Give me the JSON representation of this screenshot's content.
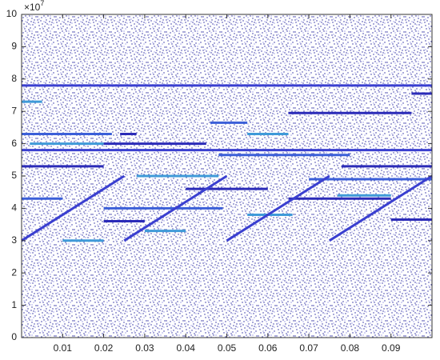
{
  "chart_data": {
    "type": "segments",
    "xlim": [
      0,
      0.1
    ],
    "xticks": [
      0.01,
      0.02,
      0.03,
      0.04,
      0.05,
      0.06,
      0.07,
      0.08,
      0.09
    ],
    "ylim": [
      0,
      100000000
    ],
    "yticks": [
      {
        "value": 0,
        "label": "0"
      },
      {
        "value": 10000000,
        "label": "1"
      },
      {
        "value": 20000000,
        "label": "2"
      },
      {
        "value": 30000000,
        "label": "3"
      },
      {
        "value": 40000000,
        "label": "4"
      },
      {
        "value": 50000000,
        "label": "5"
      },
      {
        "value": 60000000,
        "label": "6"
      },
      {
        "value": 70000000,
        "label": "7"
      },
      {
        "value": 80000000,
        "label": "8"
      },
      {
        "value": 90000000,
        "label": "9"
      },
      {
        "value": 100000000,
        "label": "10"
      }
    ],
    "y_multiplier": {
      "base": "×10",
      "exponent": "7"
    },
    "segments": [
      {
        "color": "#3a3fd0",
        "x": [
          0,
          0.1
        ],
        "y": [
          78000000,
          78000000
        ]
      },
      {
        "color": "#3a3fd0",
        "x": [
          0,
          0.1
        ],
        "y": [
          58000000,
          58000000
        ]
      },
      {
        "color": "#3f9ad8",
        "x": [
          0,
          0.005
        ],
        "y": [
          73000000,
          73000000
        ]
      },
      {
        "color": "#3b5fd8",
        "x": [
          0,
          0.022
        ],
        "y": [
          63000000,
          63000000
        ]
      },
      {
        "color": "#3f9ad8",
        "x": [
          0.002,
          0.02
        ],
        "y": [
          60000000,
          60000000
        ]
      },
      {
        "color": "#2b2bb8",
        "x": [
          0.024,
          0.028
        ],
        "y": [
          63000000,
          63000000
        ]
      },
      {
        "color": "#2b2bb8",
        "x": [
          0.02,
          0.045
        ],
        "y": [
          60000000,
          60000000
        ]
      },
      {
        "color": "#2b2bb8",
        "x": [
          0,
          0.02
        ],
        "y": [
          53000000,
          53000000
        ]
      },
      {
        "color": "#3b5fd8",
        "x": [
          0,
          0.01
        ],
        "y": [
          43000000,
          43000000
        ]
      },
      {
        "color": "#3b5fd8",
        "x": [
          0.046,
          0.055
        ],
        "y": [
          66500000,
          66500000
        ]
      },
      {
        "color": "#3f9ad8",
        "x": [
          0.055,
          0.065
        ],
        "y": [
          63000000,
          63000000
        ]
      },
      {
        "color": "#2b2bb8",
        "x": [
          0.065,
          0.095
        ],
        "y": [
          69500000,
          69500000
        ]
      },
      {
        "color": "#2b2bb8",
        "x": [
          0.095,
          0.1
        ],
        "y": [
          75500000,
          75500000
        ]
      },
      {
        "color": "#3b5fd8",
        "x": [
          0.048,
          0.08
        ],
        "y": [
          56500000,
          56500000
        ]
      },
      {
        "color": "#2b2bb8",
        "x": [
          0.078,
          0.1
        ],
        "y": [
          53000000,
          53000000
        ]
      },
      {
        "color": "#3f9ad8",
        "x": [
          0.028,
          0.048
        ],
        "y": [
          50000000,
          50000000
        ]
      },
      {
        "color": "#3b5fd8",
        "x": [
          0.07,
          0.1
        ],
        "y": [
          49000000,
          49000000
        ]
      },
      {
        "color": "#2b2bb8",
        "x": [
          0.04,
          0.06
        ],
        "y": [
          46000000,
          46000000
        ]
      },
      {
        "color": "#2b2bb8",
        "x": [
          0.065,
          0.09
        ],
        "y": [
          43000000,
          43000000
        ]
      },
      {
        "color": "#3f9ad8",
        "x": [
          0.077,
          0.09
        ],
        "y": [
          44000000,
          44000000
        ]
      },
      {
        "color": "#3b5fd8",
        "x": [
          0.02,
          0.049
        ],
        "y": [
          40000000,
          40000000
        ]
      },
      {
        "color": "#2b2bb8",
        "x": [
          0.02,
          0.03
        ],
        "y": [
          36000000,
          36000000
        ]
      },
      {
        "color": "#3f9ad8",
        "x": [
          0.03,
          0.04
        ],
        "y": [
          33000000,
          33000000
        ]
      },
      {
        "color": "#3f9ad8",
        "x": [
          0.01,
          0.02
        ],
        "y": [
          30000000,
          30000000
        ]
      },
      {
        "color": "#3f9ad8",
        "x": [
          0.055,
          0.066
        ],
        "y": [
          38000000,
          38000000
        ]
      },
      {
        "color": "#2b2bb8",
        "x": [
          0.09,
          0.1
        ],
        "y": [
          36500000,
          36500000
        ]
      },
      {
        "color": "#3a3fd0",
        "x": [
          0,
          0.025
        ],
        "y": [
          30000000,
          50000000
        ]
      },
      {
        "color": "#3a3fd0",
        "x": [
          0.025,
          0.05
        ],
        "y": [
          30000000,
          50000000
        ]
      },
      {
        "color": "#3a3fd0",
        "x": [
          0.05,
          0.075
        ],
        "y": [
          30000000,
          50000000
        ]
      },
      {
        "color": "#3a3fd0",
        "x": [
          0.075,
          0.1
        ],
        "y": [
          30000000,
          50000000
        ]
      }
    ]
  }
}
